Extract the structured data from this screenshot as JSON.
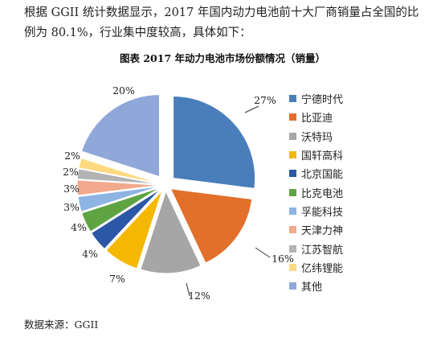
{
  "intro": {
    "line1": "根据 GGII 统计数据显示，2017 年国内动力电池前十大厂商销量占全国的比",
    "line2": "例为 80.1%，行业集中度较高，具体如下："
  },
  "source": "数据来源：GGII",
  "chart_data": {
    "type": "pie",
    "title": "图表  2017 年动力电池市场份额情况（销量）",
    "categories": [
      "宁德时代",
      "比亚迪",
      "沃特玛",
      "国轩高科",
      "北京国能",
      "比克电池",
      "孚能科技",
      "天津力神",
      "江苏智航",
      "亿纬锂能",
      "其他"
    ],
    "values": [
      27,
      16,
      12,
      7,
      4,
      4,
      3,
      3,
      2,
      2,
      20
    ],
    "data_labels": [
      "27%",
      "16%",
      "12%",
      "7%",
      "4%",
      "4%",
      "3%",
      "3%",
      "2%",
      "2%",
      "20%"
    ],
    "colors": [
      "#4a7ebb",
      "#e2702b",
      "#a6a6a6",
      "#f5b800",
      "#2c56a6",
      "#5ea443",
      "#8db4e2",
      "#f2a98e",
      "#b3b3b3",
      "#ffd980",
      "#8fa7d9"
    ],
    "legend_position": "right",
    "exploded": true
  }
}
